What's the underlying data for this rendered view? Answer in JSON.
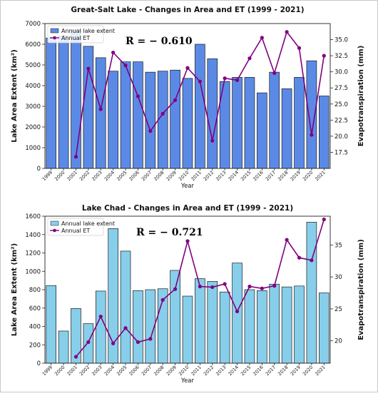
{
  "chart_data": [
    {
      "type": "bar+line",
      "title": "Great-Salt Lake - Changes in Area and ET (1999 - 2021)",
      "xlabel": "Year",
      "ylabel": "Lake Area Extent (km²)",
      "ylabel_right": "Evapotranspiration (mm)",
      "annotation": "R = − 0.610",
      "categories": [
        "1999",
        "2000",
        "2001",
        "2002",
        "2003",
        "2004",
        "2005",
        "2006",
        "2007",
        "2008",
        "2009",
        "2010",
        "2011",
        "2012",
        "2013",
        "2014",
        "2015",
        "2016",
        "2017",
        "2018",
        "2019",
        "2020",
        "2021"
      ],
      "ylim": [
        0,
        7000
      ],
      "ylim_right": [
        15,
        37.5
      ],
      "yticks": [
        "0",
        "1000",
        "2000",
        "3000",
        "4000",
        "5000",
        "6000",
        "7000"
      ],
      "yticks_right": [
        "17.5",
        "20.0",
        "22.5",
        "25.0",
        "27.5",
        "30.0",
        "32.5",
        "35.0"
      ],
      "legend": [
        "Annual lake extent",
        "Annual ET"
      ],
      "legend_position": "top-left",
      "grid": false,
      "bar_color": "#5b8ae6",
      "line_color": "#800080",
      "series": [
        {
          "name": "Annual lake extent",
          "kind": "bar",
          "values": [
            6300,
            6400,
            6700,
            5900,
            5350,
            4700,
            5150,
            5150,
            4650,
            4700,
            4750,
            4350,
            6000,
            5300,
            4200,
            4400,
            4400,
            3650,
            4650,
            3850,
            4400,
            5200,
            3500
          ]
        },
        {
          "name": "Annual ET",
          "kind": "line",
          "axis": "right",
          "x": [
            "2001",
            "2002",
            "2003",
            "2004",
            "2005",
            "2006",
            "2007",
            "2008",
            "2009",
            "2010",
            "2011",
            "2012",
            "2013",
            "2014",
            "2015",
            "2016",
            "2017",
            "2018",
            "2019",
            "2020",
            "2021"
          ],
          "values": [
            16.8,
            30.5,
            24.2,
            33.0,
            31.0,
            26.2,
            20.8,
            23.5,
            25.6,
            30.6,
            28.5,
            19.3,
            29.0,
            28.7,
            32.1,
            35.3,
            29.8,
            36.2,
            33.7,
            20.2,
            32.5
          ]
        }
      ]
    },
    {
      "type": "bar+line",
      "title": "Lake Chad - Changes in Area and ET (1999 - 2021)",
      "xlabel": "Year",
      "ylabel": "Lake Area Extent (km²)",
      "ylabel_right": "Evapotranspiration (mm)",
      "annotation": "R = − 0.721",
      "categories": [
        "1999",
        "2000",
        "2001",
        "2002",
        "2003",
        "2004",
        "2005",
        "2006",
        "2007",
        "2008",
        "2009",
        "2010",
        "2011",
        "2012",
        "2013",
        "2014",
        "2015",
        "2016",
        "2017",
        "2018",
        "2019",
        "2020",
        "2021"
      ],
      "ylim": [
        0,
        1600
      ],
      "ylim_right": [
        16.5,
        39.5
      ],
      "yticks": [
        "0",
        "200",
        "400",
        "600",
        "800",
        "1000",
        "1200",
        "1400",
        "1600"
      ],
      "yticks_right": [
        "20",
        "25",
        "30",
        "35"
      ],
      "legend": [
        "Annual lake extent",
        "Annual ET"
      ],
      "legend_position": "top-left",
      "grid": false,
      "bar_color": "#87ceeb",
      "line_color": "#800080",
      "series": [
        {
          "name": "Annual lake extent",
          "kind": "bar",
          "values": [
            845,
            350,
            595,
            430,
            785,
            1465,
            1220,
            790,
            800,
            810,
            1010,
            730,
            920,
            890,
            775,
            1090,
            800,
            790,
            860,
            830,
            840,
            1535,
            765
          ]
        },
        {
          "name": "Annual ET",
          "kind": "line",
          "axis": "right",
          "x": [
            "2001",
            "2002",
            "2003",
            "2004",
            "2005",
            "2006",
            "2007",
            "2008",
            "2009",
            "2010",
            "2011",
            "2012",
            "2013",
            "2014",
            "2015",
            "2016",
            "2017",
            "2018",
            "2019",
            "2020",
            "2021"
          ],
          "values": [
            17.5,
            19.8,
            23.8,
            19.6,
            22.0,
            19.8,
            20.3,
            26.4,
            28.1,
            35.6,
            28.5,
            28.4,
            28.9,
            24.6,
            28.5,
            28.2,
            28.6,
            35.8,
            33.0,
            32.6,
            39.0
          ]
        }
      ]
    }
  ]
}
